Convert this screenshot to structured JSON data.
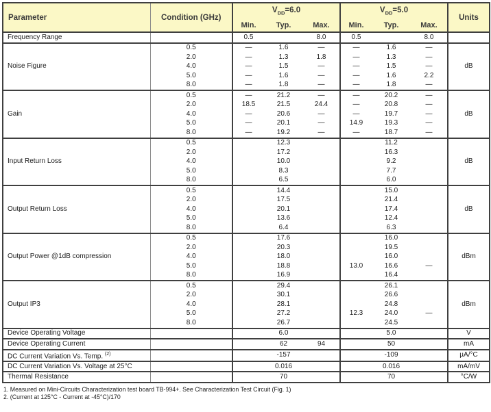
{
  "table": {
    "header": {
      "parameter": "Parameter",
      "condition": "Condition (GHz)",
      "vdd6": {
        "prefix": "V",
        "sub": "DD",
        "suffix": "=6.0"
      },
      "vdd5": {
        "prefix": "V",
        "sub": "DD",
        "suffix": "=5.0"
      },
      "min": "Min.",
      "typ": "Typ.",
      "max": "Max.",
      "units": "Units"
    },
    "sections": [
      {
        "parameter": "Frequency Range",
        "units": "",
        "rows": [
          {
            "condition": "",
            "v6": [
              "0.5",
              "",
              "8.0"
            ],
            "v5": [
              "0.5",
              "",
              "8.0"
            ]
          }
        ]
      },
      {
        "parameter": "Noise Figure",
        "units": "dB",
        "rows": [
          {
            "condition": "0.5",
            "v6": [
              "—",
              "1.6",
              "—"
            ],
            "v5": [
              "—",
              "1.6",
              "—"
            ]
          },
          {
            "condition": "2.0",
            "v6": [
              "—",
              "1.3",
              "1.8"
            ],
            "v5": [
              "—",
              "1.3",
              "—"
            ]
          },
          {
            "condition": "4.0",
            "v6": [
              "—",
              "1.5",
              "—"
            ],
            "v5": [
              "—",
              "1.5",
              "—"
            ]
          },
          {
            "condition": "5.0",
            "v6": [
              "—",
              "1.6",
              "—"
            ],
            "v5": [
              "—",
              "1.6",
              "2.2"
            ]
          },
          {
            "condition": "8.0",
            "v6": [
              "—",
              "1.8",
              "—"
            ],
            "v5": [
              "—",
              "1.8",
              "—"
            ]
          }
        ]
      },
      {
        "parameter": "Gain",
        "units": "dB",
        "rows": [
          {
            "condition": "0.5",
            "v6": [
              "—",
              "21.2",
              "—"
            ],
            "v5": [
              "—",
              "20.2",
              "—"
            ]
          },
          {
            "condition": "2.0",
            "v6": [
              "18.5",
              "21.5",
              "24.4"
            ],
            "v5": [
              "—",
              "20.8",
              "—"
            ]
          },
          {
            "condition": "4.0",
            "v6": [
              "—",
              "20.6",
              "—"
            ],
            "v5": [
              "—",
              "19.7",
              "—"
            ]
          },
          {
            "condition": "5.0",
            "v6": [
              "—",
              "20.1",
              "—"
            ],
            "v5": [
              "14.9",
              "19.3",
              "—"
            ]
          },
          {
            "condition": "8.0",
            "v6": [
              "—",
              "19.2",
              "—"
            ],
            "v5": [
              "—",
              "18.7",
              "—"
            ]
          }
        ]
      },
      {
        "parameter": "Input Return Loss",
        "units": "dB",
        "rows": [
          {
            "condition": "0.5",
            "v6": [
              "",
              "12.3",
              ""
            ],
            "v5": [
              "",
              "11.2",
              ""
            ]
          },
          {
            "condition": "2.0",
            "v6": [
              "",
              "17.2",
              ""
            ],
            "v5": [
              "",
              "16.3",
              ""
            ]
          },
          {
            "condition": "4.0",
            "v6": [
              "",
              "10.0",
              ""
            ],
            "v5": [
              "",
              "9.2",
              ""
            ]
          },
          {
            "condition": "5.0",
            "v6": [
              "",
              "8.3",
              ""
            ],
            "v5": [
              "",
              "7.7",
              ""
            ]
          },
          {
            "condition": "8.0",
            "v6": [
              "",
              "6.5",
              ""
            ],
            "v5": [
              "",
              "6.0",
              ""
            ]
          }
        ]
      },
      {
        "parameter": "Output Return Loss",
        "units": "dB",
        "rows": [
          {
            "condition": "0.5",
            "v6": [
              "",
              "14.4",
              ""
            ],
            "v5": [
              "",
              "15.0",
              ""
            ]
          },
          {
            "condition": "2.0",
            "v6": [
              "",
              "17.5",
              ""
            ],
            "v5": [
              "",
              "21.4",
              ""
            ]
          },
          {
            "condition": "4.0",
            "v6": [
              "",
              "20.1",
              ""
            ],
            "v5": [
              "",
              "17.4",
              ""
            ]
          },
          {
            "condition": "5.0",
            "v6": [
              "",
              "13.6",
              ""
            ],
            "v5": [
              "",
              "12.4",
              ""
            ]
          },
          {
            "condition": "8.0",
            "v6": [
              "",
              "6.4",
              ""
            ],
            "v5": [
              "",
              "6.3",
              ""
            ]
          }
        ]
      },
      {
        "parameter": "Output Power @1dB compression",
        "units": "dBm",
        "rows": [
          {
            "condition": "0.5",
            "v6": [
              "",
              "17.6",
              ""
            ],
            "v5": [
              "",
              "16.0",
              ""
            ]
          },
          {
            "condition": "2.0",
            "v6": [
              "",
              "20.3",
              ""
            ],
            "v5": [
              "",
              "19.5",
              ""
            ]
          },
          {
            "condition": "4.0",
            "v6": [
              "",
              "18.0",
              ""
            ],
            "v5": [
              "",
              "16.0",
              ""
            ]
          },
          {
            "condition": "5.0",
            "v6": [
              "",
              "18.8",
              ""
            ],
            "v5": [
              "13.0",
              "16.6",
              "—"
            ]
          },
          {
            "condition": "8.0",
            "v6": [
              "",
              "16.9",
              ""
            ],
            "v5": [
              "",
              "16.4",
              ""
            ]
          }
        ]
      },
      {
        "parameter": "Output IP3",
        "units": "dBm",
        "rows": [
          {
            "condition": "0.5",
            "v6": [
              "",
              "29.4",
              ""
            ],
            "v5": [
              "",
              "26.1",
              ""
            ]
          },
          {
            "condition": "2.0",
            "v6": [
              "",
              "30.1",
              ""
            ],
            "v5": [
              "",
              "26.6",
              ""
            ]
          },
          {
            "condition": "4.0",
            "v6": [
              "",
              "28.1",
              ""
            ],
            "v5": [
              "",
              "24.8",
              ""
            ]
          },
          {
            "condition": "5.0",
            "v6": [
              "",
              "27.2",
              ""
            ],
            "v5": [
              "12.3",
              "24.0",
              "—"
            ]
          },
          {
            "condition": "8.0",
            "v6": [
              "",
              "26.7",
              ""
            ],
            "v5": [
              "",
              "24.5",
              ""
            ]
          }
        ]
      },
      {
        "parameter": "Device Operating Voltage",
        "units": "V",
        "rows": [
          {
            "condition": "",
            "v6": [
              "",
              "6.0",
              ""
            ],
            "v5": [
              "",
              "5.0",
              ""
            ]
          }
        ]
      },
      {
        "parameter": "Device Operating Current",
        "units": "mA",
        "rows": [
          {
            "condition": "",
            "v6": [
              "",
              "62",
              "94"
            ],
            "v5": [
              "",
              "50",
              ""
            ]
          }
        ]
      },
      {
        "parameter": "DC Current Variation Vs. Temp. ",
        "parameter_sup": "(2)",
        "units": "µA/°C",
        "rows": [
          {
            "condition": "",
            "v6": [
              "",
              "-157",
              ""
            ],
            "v5": [
              "",
              "-109",
              ""
            ]
          }
        ]
      },
      {
        "parameter": "DC Current Variation Vs. Voltage at 25°C",
        "units": "mA/mV",
        "rows": [
          {
            "condition": "",
            "v6": [
              "",
              "0.016",
              ""
            ],
            "v5": [
              "",
              "0.016",
              ""
            ]
          }
        ]
      },
      {
        "parameter": "Thermal Resistance",
        "units": "°C/W",
        "rows": [
          {
            "condition": "",
            "v6": [
              "",
              "70",
              ""
            ],
            "v5": [
              "",
              "70",
              ""
            ]
          }
        ]
      }
    ]
  },
  "footnotes": [
    "1. Measured on Mini-Circuits Characterization test board TB-994+. See Characterization Test Circuit (Fig. 1)",
    "2. (Current at 125°C - Current at -45°C)/170"
  ],
  "colors": {
    "header_bg": "#fbf8c6",
    "border_dark": "#3f3f3f",
    "border_light": "#8a8a8a",
    "text": "#1c1c1c"
  }
}
